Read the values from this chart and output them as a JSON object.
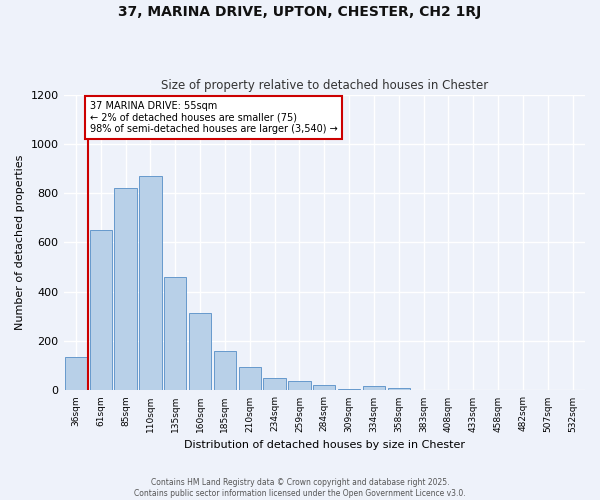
{
  "title": "37, MARINA DRIVE, UPTON, CHESTER, CH2 1RJ",
  "subtitle": "Size of property relative to detached houses in Chester",
  "xlabel": "Distribution of detached houses by size in Chester",
  "ylabel": "Number of detached properties",
  "bar_labels": [
    "36sqm",
    "61sqm",
    "85sqm",
    "110sqm",
    "135sqm",
    "160sqm",
    "185sqm",
    "210sqm",
    "234sqm",
    "259sqm",
    "284sqm",
    "309sqm",
    "334sqm",
    "358sqm",
    "383sqm",
    "408sqm",
    "433sqm",
    "458sqm",
    "482sqm",
    "507sqm",
    "532sqm"
  ],
  "bar_values": [
    135,
    650,
    820,
    870,
    460,
    315,
    160,
    95,
    50,
    40,
    20,
    5,
    18,
    8,
    0,
    0,
    0,
    0,
    0,
    0,
    2
  ],
  "bar_color": "#b8d0e8",
  "bar_edge_color": "#6699cc",
  "marker_line_color": "#cc0000",
  "annotation_line1": "37 MARINA DRIVE: 55sqm",
  "annotation_line2": "← 2% of detached houses are smaller (75)",
  "annotation_line3": "98% of semi-detached houses are larger (3,540) →",
  "annotation_box_color": "#ffffff",
  "annotation_box_edge": "#cc0000",
  "ylim": [
    0,
    1200
  ],
  "yticks": [
    0,
    200,
    400,
    600,
    800,
    1000,
    1200
  ],
  "bg_color": "#eef2fa",
  "footer1": "Contains HM Land Registry data © Crown copyright and database right 2025.",
  "footer2": "Contains public sector information licensed under the Open Government Licence v3.0."
}
